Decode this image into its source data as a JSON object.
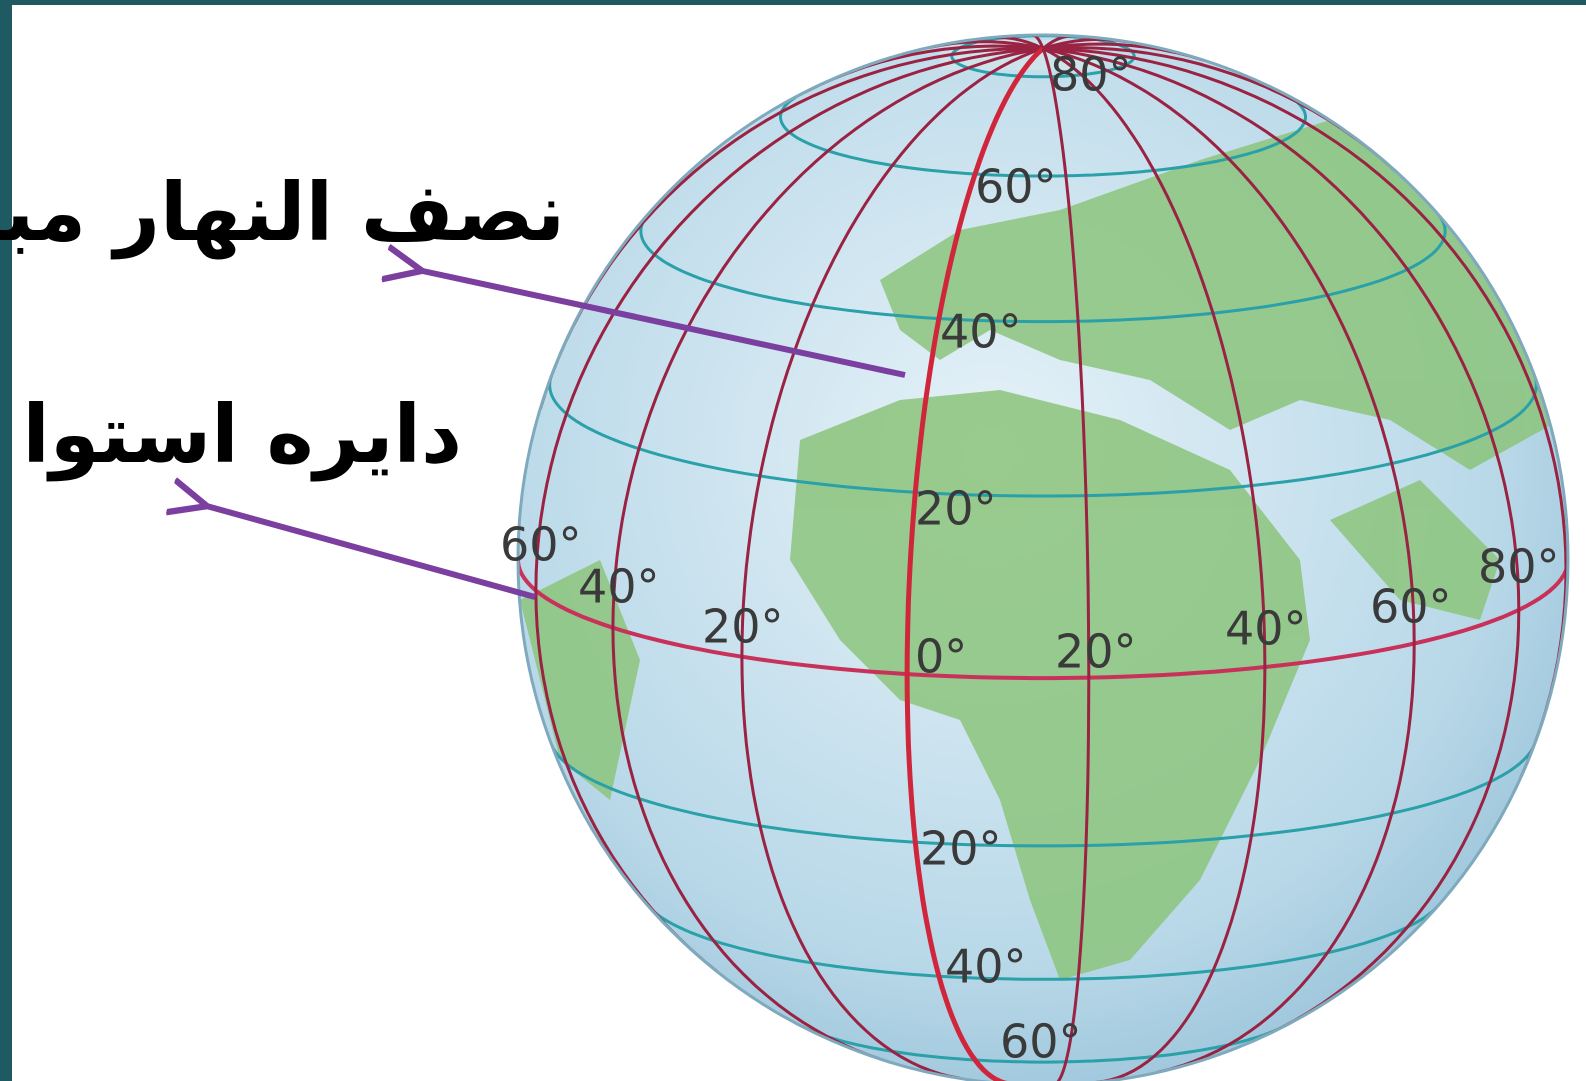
{
  "labels": {
    "prime_meridian": "نصف النهار مبدا",
    "equator": "دايره استوا"
  },
  "latitude_labels": [
    "80°",
    "60°",
    "40°",
    "20°",
    "20°",
    "40°",
    "60°"
  ],
  "longitude_labels": [
    "60°",
    "40°",
    "20°",
    "0°",
    "20°",
    "40°",
    "60°",
    "80°"
  ]
}
